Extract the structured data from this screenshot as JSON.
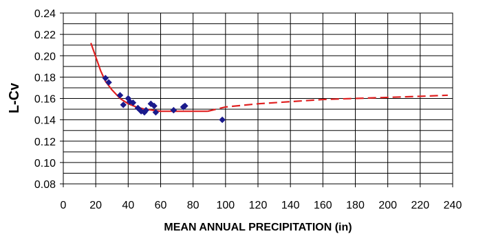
{
  "chart_data": {
    "type": "scatter",
    "title": "",
    "xlabel": "MEAN ANNUAL PRECIPITATION (in)",
    "ylabel": "L-Cv",
    "xlim": [
      0,
      240
    ],
    "ylim": [
      0.08,
      0.24
    ],
    "x_ticks": [
      "0",
      "20",
      "40",
      "60",
      "80",
      "100",
      "120",
      "140",
      "160",
      "180",
      "200",
      "220",
      "240"
    ],
    "y_ticks": [
      "0.08",
      "0.10",
      "0.12",
      "0.14",
      "0.16",
      "0.18",
      "0.20",
      "0.22",
      "0.24"
    ],
    "grid": true,
    "legend": false,
    "points": {
      "color": "#1a1a8c",
      "marker": "diamond",
      "x": [
        26,
        28,
        35,
        37,
        40,
        41,
        43,
        46,
        48,
        50,
        51,
        54,
        56,
        57,
        68,
        74,
        75,
        98
      ],
      "y": [
        0.179,
        0.175,
        0.163,
        0.154,
        0.16,
        0.157,
        0.156,
        0.151,
        0.148,
        0.147,
        0.149,
        0.155,
        0.153,
        0.147,
        0.149,
        0.152,
        0.153,
        0.14
      ]
    },
    "fit_solid": {
      "color": "#e02020",
      "x": [
        17,
        20,
        23,
        26,
        30,
        35,
        40,
        45,
        50,
        55,
        60,
        70,
        80,
        89
      ],
      "y": [
        0.212,
        0.199,
        0.186,
        0.176,
        0.168,
        0.16,
        0.155,
        0.152,
        0.15,
        0.149,
        0.148,
        0.148,
        0.148,
        0.148
      ]
    },
    "fit_dashed": {
      "color": "#e02020",
      "x": [
        89,
        100,
        120,
        140,
        160,
        180,
        200,
        220,
        237
      ],
      "y": [
        0.148,
        0.152,
        0.155,
        0.157,
        0.159,
        0.16,
        0.161,
        0.162,
        0.163
      ]
    }
  }
}
